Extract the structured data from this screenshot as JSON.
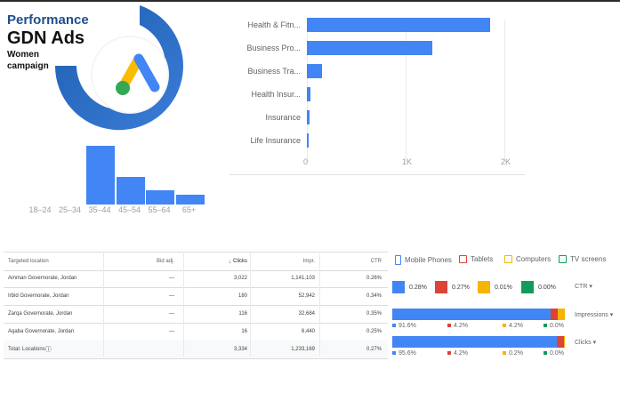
{
  "brand": {
    "line1": "Performance",
    "line2": "GDN Ads",
    "line3": "Women",
    "line4": "campaign",
    "logo": "google-ads-logo"
  },
  "age_chart": {
    "categories": [
      "18–24",
      "25–34",
      "35–44",
      "45–54",
      "55–64",
      "65+"
    ],
    "values": [
      0,
      0,
      100,
      47,
      24,
      16
    ]
  },
  "industry_chart": {
    "type": "bar",
    "categories": [
      "Health & Fitn...",
      "Business Pro...",
      "Business Tra...",
      "Health Insur...",
      "Insurance",
      "Life Insurance"
    ],
    "values": [
      1860,
      1270,
      150,
      35,
      30,
      10
    ],
    "ticks": [
      "0",
      "1K",
      "2K"
    ],
    "xlim": [
      0,
      2000
    ]
  },
  "table": {
    "headers": {
      "location": "Targeted location",
      "bid": "Bid adj.",
      "clicks": "Clicks",
      "impr": "Impr.",
      "ctr": "CTR"
    },
    "rows": [
      {
        "location": "Amman Governorate, Jordan",
        "bid": "—",
        "clicks": "3,022",
        "impr": "1,141,103",
        "ctr": "0.26%"
      },
      {
        "location": "Irbid Governorate, Jordan",
        "bid": "—",
        "clicks": "180",
        "impr": "52,942",
        "ctr": "0.34%"
      },
      {
        "location": "Zarqa Governorate, Jordan",
        "bid": "—",
        "clicks": "116",
        "impr": "32,684",
        "ctr": "0.35%"
      },
      {
        "location": "Aqaba Governorate, Jordan",
        "bid": "—",
        "clicks": "16",
        "impr": "6,440",
        "ctr": "0.25%"
      }
    ],
    "total": {
      "location": "Total: Locations",
      "clicks": "3,334",
      "impr": "1,233,169",
      "ctr": "0.27%"
    }
  },
  "devices": {
    "legend": [
      "Mobile Phones",
      "Tablets",
      "Computers",
      "TV screens"
    ],
    "colors": [
      "#4285f4",
      "#db4437",
      "#f4b400",
      "#0f9d58"
    ],
    "ctr_values": [
      "0.28%",
      "0.27%",
      "0.01%",
      "0.00%"
    ],
    "selectors": [
      "CTR",
      "Impressions",
      "Clicks"
    ],
    "impressions_pct": [
      91.6,
      4.2,
      4.2,
      0.0
    ],
    "impressions_labels": [
      "91.6%",
      "4.2%",
      "4.2%",
      "0.0%"
    ],
    "clicks_pct": [
      95.6,
      4.2,
      0.2,
      0.0
    ],
    "clicks_labels": [
      "95.6%",
      "4.2%",
      "0.2%",
      "0.0%"
    ]
  }
}
